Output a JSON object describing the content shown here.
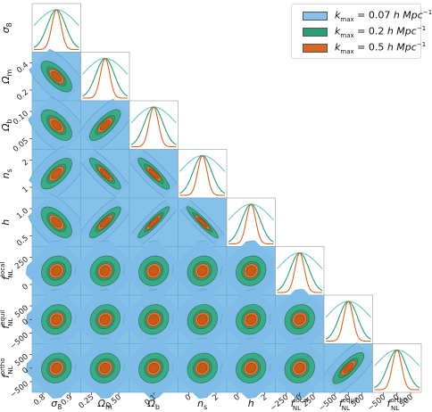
{
  "chart_data": {
    "type": "corner",
    "parameters": [
      {
        "name": "σ8",
        "sym": "σ",
        "sub": "8",
        "sup": "",
        "xticks": [
          "0.8",
          "0.9"
        ],
        "yticks": []
      },
      {
        "name": "Ωm",
        "sym": "Ω",
        "sub": "m",
        "sup": "",
        "xticks": [
          "0.25",
          "0.50"
        ],
        "yticks": [
          "0.2",
          "0.4"
        ]
      },
      {
        "name": "Ωb",
        "sym": "Ω",
        "sub": "b",
        "sup": "",
        "xticks": [
          "0.1"
        ],
        "yticks": [
          "0.05",
          "0.10"
        ]
      },
      {
        "name": "ns",
        "sym": "n",
        "sub": "s",
        "sup": "",
        "xticks": [
          "0",
          "2"
        ],
        "yticks": [
          "1",
          "2"
        ]
      },
      {
        "name": "h",
        "sym": "h",
        "sub": "",
        "sup": "",
        "xticks": [
          "0",
          "2"
        ],
        "yticks": [
          "0.5",
          "1.0"
        ]
      },
      {
        "name": "fNL local",
        "sym": "f",
        "sub": "NL",
        "sup": "local",
        "xticks": [
          "−250",
          "0",
          "250"
        ],
        "yticks": [
          "0",
          "250"
        ]
      },
      {
        "name": "fNL equil",
        "sym": "f",
        "sub": "NL",
        "sup": "equil",
        "xticks": [
          "−500",
          "0",
          "500"
        ],
        "yticks": [
          "−500",
          "0",
          "500"
        ]
      },
      {
        "name": "fNL ortho",
        "sym": "f",
        "sub": "NL",
        "sup": "ortho",
        "xticks": [
          "−500",
          "0",
          "500"
        ],
        "yticks": [
          "−500",
          "0",
          "500"
        ]
      }
    ],
    "series": [
      {
        "name": "k_max = 0.07 h Mpc⁻¹",
        "color": "#85c1e9",
        "edge": "#5aa0c8",
        "scale": 1.0
      },
      {
        "name": "k_max = 0.2 h Mpc⁻¹",
        "color": "#2a9d76",
        "edge": "#1d6b52",
        "scale": 0.36
      },
      {
        "name": "k_max = 0.5 h Mpc⁻¹",
        "color": "#d9661f",
        "edge": "#7a3a12",
        "scale": 0.14
      }
    ],
    "legend": {
      "position": "top-right",
      "entries": [
        {
          "prefix": "k",
          "sub": "max",
          "value": " = 0.07 ",
          "unit": "h Mpc",
          "exp": "−1"
        },
        {
          "prefix": "k",
          "sub": "max",
          "value": " = 0.2 ",
          "unit": "h Mpc",
          "exp": "−1"
        },
        {
          "prefix": "k",
          "sub": "max",
          "value": " = 0.5 ",
          "unit": "h Mpc",
          "exp": "−1"
        }
      ]
    },
    "correlation": [
      [
        1,
        -0.6,
        -0.5,
        0.6,
        -0.5,
        0,
        0,
        0
      ],
      [
        -0.6,
        1,
        0.7,
        -0.85,
        0.8,
        0,
        0,
        0
      ],
      [
        -0.5,
        0.7,
        1,
        -0.85,
        0.9,
        0,
        0,
        0
      ],
      [
        0.6,
        -0.85,
        -0.85,
        1,
        -0.95,
        0,
        0,
        0
      ],
      [
        -0.5,
        0.8,
        0.9,
        -0.95,
        1,
        0,
        0,
        0
      ],
      [
        0,
        0,
        0,
        0,
        0,
        1,
        0,
        0
      ],
      [
        0,
        0,
        0,
        0,
        0,
        0,
        1,
        0.75
      ],
      [
        0,
        0,
        0,
        0,
        0,
        0,
        0.75,
        1
      ]
    ]
  }
}
